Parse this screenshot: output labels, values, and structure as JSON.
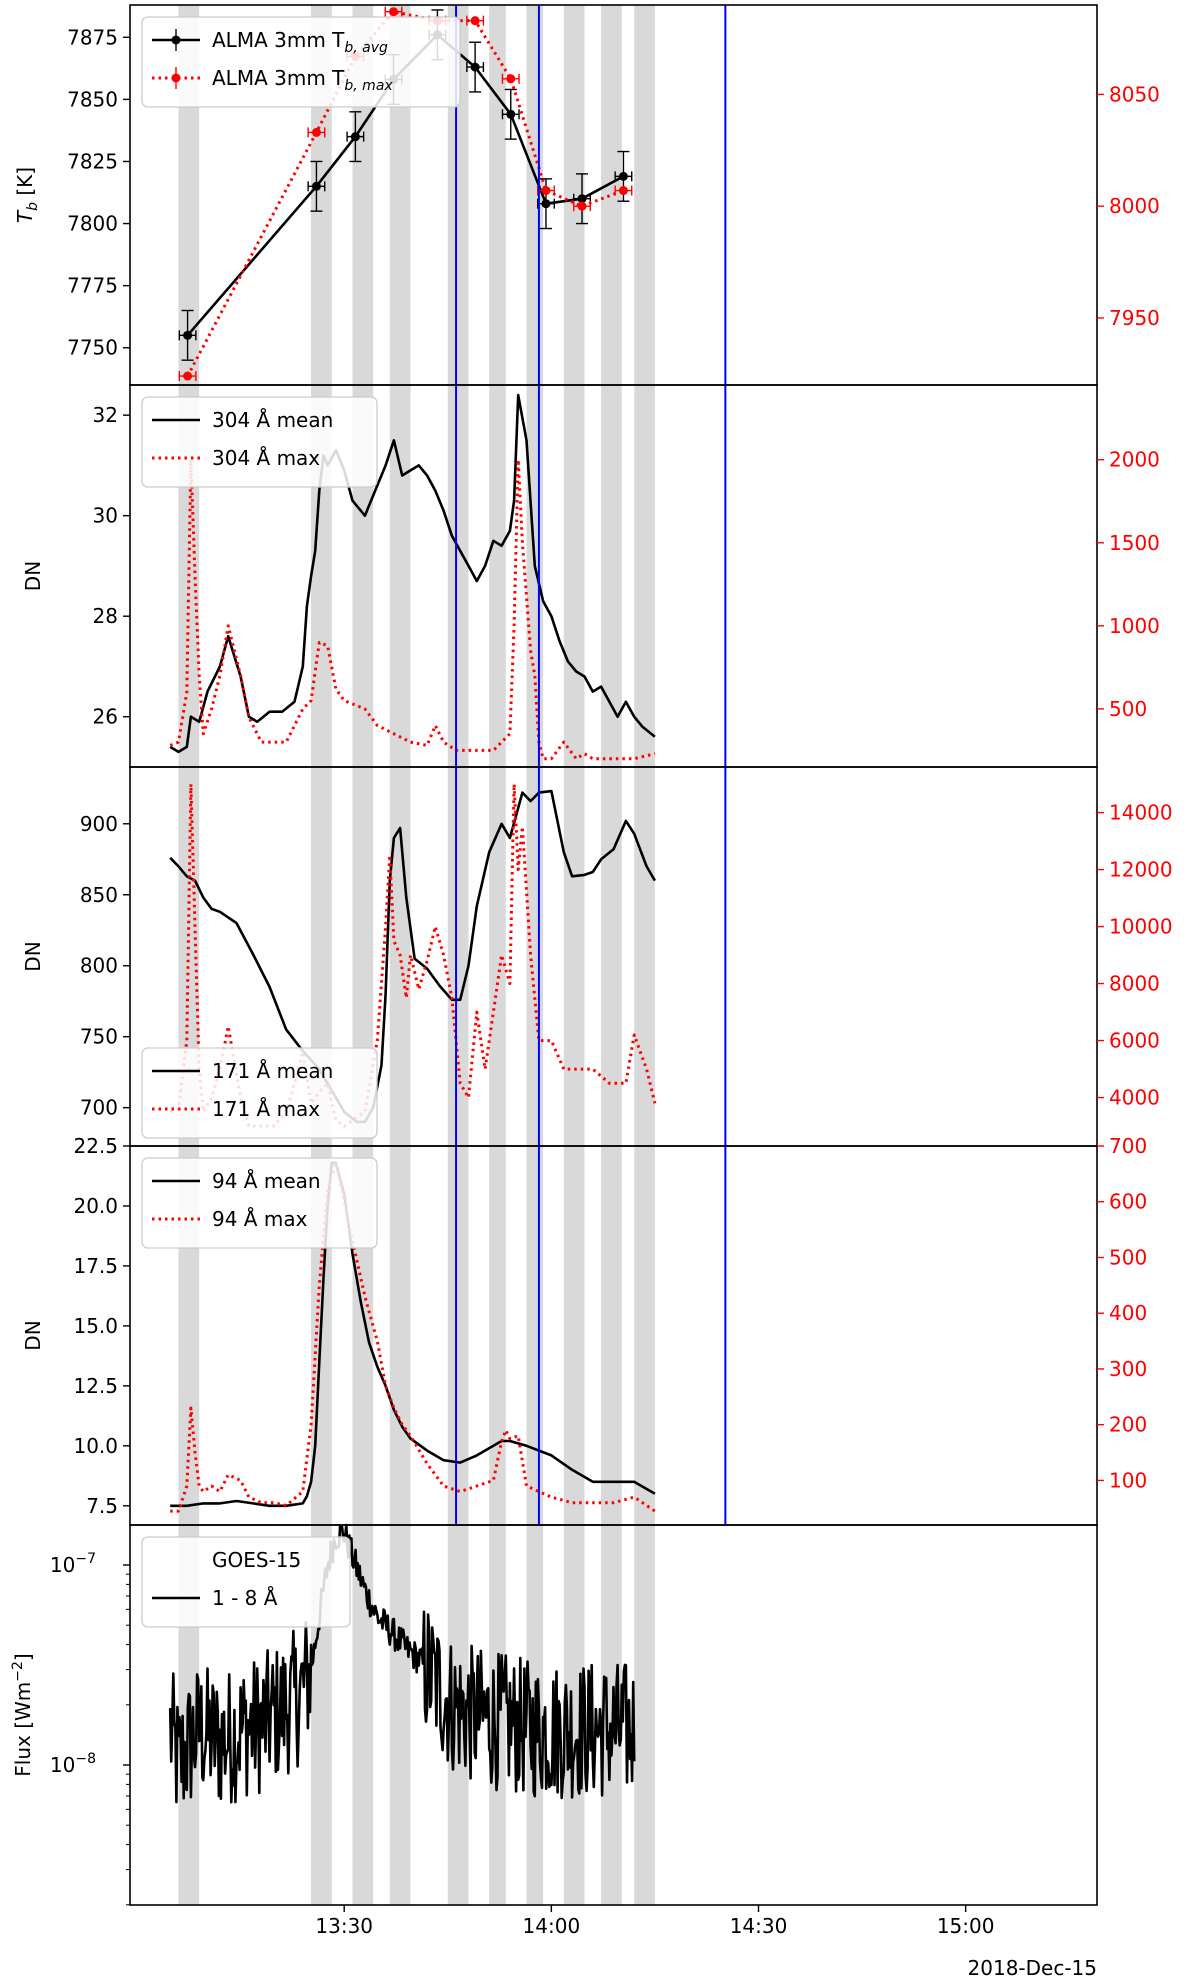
{
  "figure": {
    "date_label": "2018-Dec-15",
    "x_ticks": [
      {
        "t": 13.5,
        "label": "13:30"
      },
      {
        "t": 14.0,
        "label": "14:00"
      },
      {
        "t": 14.5,
        "label": "14:30"
      },
      {
        "t": 15.0,
        "label": "15:00"
      }
    ],
    "xlim": [
      12.983,
      15.317
    ],
    "gray_bands": [
      [
        13.1,
        13.15
      ],
      [
        13.42,
        13.47
      ],
      [
        13.52,
        13.57
      ],
      [
        13.61,
        13.66
      ],
      [
        13.75,
        13.8
      ],
      [
        13.85,
        13.89
      ],
      [
        13.94,
        13.98
      ],
      [
        14.03,
        14.08
      ],
      [
        14.12,
        14.17
      ],
      [
        14.2,
        14.25
      ]
    ],
    "blue_lines": [
      13.77,
      13.97,
      14.42
    ],
    "colors": {
      "black": "#000000",
      "red": "#ff0000",
      "blue": "#0000ff",
      "gray": "#d9d9d9"
    }
  },
  "chart_data": [
    {
      "type": "line",
      "panel": "ALMA",
      "ylabel": "T_b [K]",
      "ylim_left": [
        7735,
        7888
      ],
      "ylim_right": [
        7920,
        8090
      ],
      "yticks_left": [
        7750,
        7775,
        7800,
        7825,
        7850,
        7875
      ],
      "yticks_right": [
        7950,
        8000,
        8050
      ],
      "legend": [
        {
          "main": "ALMA 3mm T",
          "sub": "b, avg"
        },
        {
          "main": "ALMA 3mm T",
          "sub": "b, max"
        }
      ],
      "series": [
        {
          "name": "ALMA 3mm Tb,avg",
          "axis": "left",
          "style": "solid",
          "color": "black",
          "x": [
            13.122,
            13.433,
            13.527,
            13.619,
            13.725,
            13.816,
            13.902,
            13.987,
            14.074,
            14.174
          ],
          "y": [
            7755,
            7815,
            7835,
            7858,
            7876,
            7863,
            7844,
            7808,
            7810,
            7819
          ],
          "yerr": 10,
          "xerr": 0.02
        },
        {
          "name": "ALMA 3mm Tb,max",
          "axis": "right",
          "style": "dotted",
          "color": "red",
          "x": [
            13.122,
            13.433,
            13.527,
            13.619,
            13.725,
            13.816,
            13.902,
            13.987,
            14.074,
            14.174
          ],
          "y": [
            7924,
            8033,
            8067,
            8087,
            8083,
            8083,
            8057,
            8007,
            8000,
            8007
          ],
          "xerr": 0.02
        }
      ]
    },
    {
      "type": "line",
      "panel": "304",
      "ylabel": "DN",
      "ylim_left": [
        25.0,
        32.6
      ],
      "ylim_right": [
        150,
        2450
      ],
      "yticks_left": [
        26,
        28,
        30,
        32
      ],
      "yticks_right": [
        500,
        1000,
        1500,
        2000
      ],
      "legend": [
        {
          "main": "304 Å mean"
        },
        {
          "main": "304 Å max"
        }
      ],
      "series": [
        {
          "name": "304 Å mean",
          "axis": "left",
          "style": "solid",
          "color": "black",
          "x": [
            13.08,
            13.1,
            13.12,
            13.13,
            13.15,
            13.17,
            13.2,
            13.22,
            13.25,
            13.27,
            13.29,
            13.32,
            13.35,
            13.38,
            13.4,
            13.41,
            13.42,
            13.43,
            13.44,
            13.45,
            13.46,
            13.48,
            13.5,
            13.52,
            13.55,
            13.58,
            13.6,
            13.62,
            13.64,
            13.66,
            13.68,
            13.7,
            13.72,
            13.74,
            13.76,
            13.78,
            13.8,
            13.82,
            13.84,
            13.86,
            13.88,
            13.9,
            13.91,
            13.92,
            13.94,
            13.96,
            13.98,
            14.0,
            14.02,
            14.04,
            14.06,
            14.08,
            14.1,
            14.12,
            14.14,
            14.16,
            14.18,
            14.2,
            14.22,
            14.25
          ],
          "y": [
            25.4,
            25.3,
            25.4,
            26.0,
            25.9,
            26.5,
            27.0,
            27.6,
            26.8,
            26.0,
            25.9,
            26.1,
            26.1,
            26.3,
            27.0,
            28.2,
            28.8,
            29.3,
            30.5,
            31.2,
            31.0,
            31.3,
            30.9,
            30.3,
            30.0,
            30.6,
            31.0,
            31.5,
            30.8,
            30.9,
            31.0,
            30.8,
            30.5,
            30.1,
            29.6,
            29.3,
            29.0,
            28.7,
            29.0,
            29.5,
            29.4,
            29.7,
            30.3,
            32.4,
            31.5,
            29.0,
            28.3,
            28.0,
            27.5,
            27.1,
            26.9,
            26.8,
            26.5,
            26.6,
            26.3,
            26.0,
            26.3,
            26.0,
            25.8,
            25.6
          ]
        },
        {
          "name": "304 Å max",
          "axis": "right",
          "style": "dotted",
          "color": "red",
          "x": [
            13.08,
            13.1,
            13.12,
            13.13,
            13.14,
            13.15,
            13.16,
            13.18,
            13.2,
            13.22,
            13.25,
            13.27,
            13.3,
            13.33,
            13.36,
            13.38,
            13.4,
            13.42,
            13.44,
            13.46,
            13.48,
            13.5,
            13.52,
            13.55,
            13.58,
            13.62,
            13.66,
            13.7,
            13.72,
            13.74,
            13.77,
            13.8,
            13.83,
            13.86,
            13.88,
            13.9,
            13.91,
            13.92,
            13.93,
            13.95,
            13.96,
            13.97,
            13.98,
            14.0,
            14.03,
            14.06,
            14.08,
            14.1,
            14.15,
            14.2,
            14.25
          ],
          "y": [
            280,
            300,
            600,
            2000,
            1300,
            700,
            350,
            500,
            700,
            1000,
            700,
            450,
            300,
            300,
            300,
            400,
            500,
            550,
            900,
            880,
            620,
            550,
            530,
            500,
            400,
            350,
            300,
            280,
            400,
            300,
            250,
            250,
            250,
            250,
            300,
            350,
            1000,
            2000,
            1500,
            850,
            700,
            300,
            200,
            200,
            300,
            200,
            230,
            200,
            200,
            200,
            230
          ]
        }
      ]
    },
    {
      "type": "line",
      "panel": "171",
      "ylabel": "DN",
      "ylim_left": [
        673,
        940
      ],
      "ylim_right": [
        2300,
        15600
      ],
      "yticks_left": [
        700,
        750,
        800,
        850,
        900
      ],
      "yticks_right": [
        4000,
        6000,
        8000,
        10000,
        12000,
        14000
      ],
      "legend": [
        {
          "main": "171 Å mean"
        },
        {
          "main": "171 Å max"
        }
      ],
      "series": [
        {
          "name": "171 Å mean",
          "axis": "left",
          "style": "solid",
          "color": "black",
          "x": [
            13.08,
            13.1,
            13.12,
            13.14,
            13.16,
            13.18,
            13.2,
            13.24,
            13.28,
            13.32,
            13.36,
            13.4,
            13.44,
            13.47,
            13.5,
            13.53,
            13.55,
            13.57,
            13.59,
            13.6,
            13.61,
            13.62,
            13.635,
            13.65,
            13.67,
            13.7,
            13.73,
            13.76,
            13.78,
            13.8,
            13.82,
            13.85,
            13.88,
            13.9,
            13.93,
            13.95,
            13.97,
            14.0,
            14.03,
            14.05,
            14.08,
            14.1,
            14.12,
            14.15,
            14.18,
            14.2,
            14.23,
            14.25
          ],
          "y": [
            876,
            870,
            863,
            860,
            848,
            840,
            838,
            830,
            808,
            785,
            755,
            740,
            727,
            712,
            697,
            690,
            690,
            700,
            730,
            780,
            860,
            890,
            897,
            848,
            805,
            798,
            786,
            776,
            776,
            800,
            842,
            880,
            900,
            890,
            922,
            916,
            922,
            923,
            880,
            863,
            864,
            866,
            875,
            882,
            902,
            893,
            870,
            860
          ]
        },
        {
          "name": "171 Å max",
          "axis": "right",
          "style": "dotted",
          "color": "red",
          "x": [
            13.08,
            13.1,
            13.12,
            13.13,
            13.14,
            13.15,
            13.16,
            13.18,
            13.2,
            13.22,
            13.25,
            13.27,
            13.3,
            13.33,
            13.36,
            13.38,
            13.4,
            13.42,
            13.44,
            13.46,
            13.48,
            13.5,
            13.52,
            13.55,
            13.58,
            13.6,
            13.61,
            13.62,
            13.635,
            13.65,
            13.66,
            13.68,
            13.7,
            13.72,
            13.74,
            13.76,
            13.78,
            13.8,
            13.82,
            13.84,
            13.86,
            13.88,
            13.9,
            13.91,
            13.92,
            13.93,
            13.95,
            13.97,
            14.0,
            14.03,
            14.06,
            14.1,
            14.14,
            14.18,
            14.2,
            14.23,
            14.25
          ],
          "y": [
            3500,
            3600,
            6000,
            15000,
            10000,
            5000,
            3500,
            4000,
            5000,
            6500,
            4000,
            3000,
            3000,
            3000,
            3500,
            4500,
            5600,
            3800,
            4200,
            4500,
            3200,
            3000,
            3200,
            3500,
            6000,
            10000,
            12500,
            9500,
            9000,
            7500,
            9000,
            7800,
            8800,
            10000,
            9000,
            7500,
            4500,
            4000,
            7000,
            5000,
            7000,
            9000,
            8000,
            15000,
            12000,
            13500,
            9000,
            6000,
            6000,
            5000,
            5000,
            5000,
            4500,
            4500,
            6200,
            5000,
            3800
          ]
        }
      ]
    },
    {
      "type": "line",
      "panel": "94",
      "ylabel": "DN",
      "ylim_left": [
        6.7,
        22.5
      ],
      "ylim_right": [
        20,
        700
      ],
      "yticks_left": [
        7.5,
        10.0,
        12.5,
        15.0,
        17.5,
        20.0,
        22.5
      ],
      "yticks_right": [
        100,
        200,
        300,
        400,
        500,
        600,
        700
      ],
      "legend": [
        {
          "main": "94 Å mean"
        },
        {
          "main": "94 Å max"
        }
      ],
      "series": [
        {
          "name": "94 Å mean",
          "axis": "left",
          "style": "solid",
          "color": "black",
          "x": [
            13.08,
            13.12,
            13.16,
            13.2,
            13.24,
            13.28,
            13.32,
            13.36,
            13.4,
            13.41,
            13.42,
            13.43,
            13.44,
            13.45,
            13.46,
            13.47,
            13.48,
            13.5,
            13.52,
            13.54,
            13.56,
            13.58,
            13.6,
            13.62,
            13.64,
            13.66,
            13.7,
            13.74,
            13.78,
            13.82,
            13.86,
            13.88,
            13.9,
            13.94,
            14.0,
            14.05,
            14.1,
            14.15,
            14.2,
            14.25
          ],
          "y": [
            7.5,
            7.5,
            7.6,
            7.6,
            7.7,
            7.6,
            7.5,
            7.5,
            7.6,
            7.9,
            8.5,
            10.0,
            13.5,
            17.0,
            20.0,
            21.8,
            21.8,
            20.5,
            18.0,
            16.0,
            14.3,
            13.3,
            12.5,
            11.5,
            10.8,
            10.3,
            9.8,
            9.4,
            9.3,
            9.6,
            10.0,
            10.2,
            10.2,
            10.0,
            9.6,
            9.0,
            8.5,
            8.5,
            8.5,
            8.0
          ]
        },
        {
          "name": "94 Å max",
          "axis": "right",
          "style": "dotted",
          "color": "red",
          "x": [
            13.08,
            13.1,
            13.12,
            13.13,
            13.14,
            13.15,
            13.16,
            13.18,
            13.2,
            13.22,
            13.25,
            13.27,
            13.3,
            13.33,
            13.36,
            13.4,
            13.42,
            13.44,
            13.46,
            13.48,
            13.5,
            13.52,
            13.55,
            13.58,
            13.6,
            13.62,
            13.64,
            13.66,
            13.7,
            13.74,
            13.78,
            13.82,
            13.86,
            13.88,
            13.89,
            13.9,
            13.92,
            13.94,
            14.0,
            14.05,
            14.1,
            14.15,
            14.2,
            14.25
          ],
          "y": [
            45,
            45,
            90,
            230,
            150,
            90,
            80,
            90,
            80,
            110,
            100,
            70,
            60,
            60,
            55,
            80,
            200,
            450,
            620,
            670,
            600,
            530,
            430,
            350,
            270,
            230,
            200,
            180,
            130,
            90,
            80,
            90,
            100,
            170,
            190,
            175,
            180,
            90,
            70,
            60,
            60,
            60,
            70,
            45
          ]
        }
      ]
    },
    {
      "type": "line",
      "panel": "GOES",
      "ylabel": "Flux [Wm^-2]",
      "yscale": "log",
      "ylim_log10": [
        -8.7,
        -6.8
      ],
      "yticks": [
        {
          "log10": -8,
          "label": "10^-8"
        },
        {
          "log10": -7,
          "label": "10^-7"
        }
      ],
      "legend": [
        {
          "main": "GOES-15"
        },
        {
          "main": "1 - 8 Å"
        }
      ],
      "series": [
        {
          "name": "GOES-15 1 - 8 Å",
          "style": "solid",
          "color": "black",
          "x": [
            13.08,
            13.1,
            13.12,
            13.15,
            13.2,
            13.25,
            13.3,
            13.35,
            13.39,
            13.42,
            13.44,
            13.46,
            13.48,
            13.5,
            13.52,
            13.55,
            13.58,
            13.62,
            13.65,
            13.68,
            13.72,
            13.76,
            13.8,
            13.85,
            13.9,
            13.95,
            14.0,
            14.05,
            14.1,
            14.15,
            14.2
          ],
          "y": [
            1.5e-08,
            1e-08,
            1.2e-08,
            1.5e-08,
            1.3e-08,
            1.5e-08,
            1.6e-08,
            1.9e-08,
            2.2e-08,
            3e-08,
            5.5e-08,
            1e-07,
            1.4e-07,
            1.45e-07,
            1.1e-07,
            7.5e-08,
            5.5e-08,
            4.5e-08,
            3.8e-08,
            3.4e-08,
            2.6e-08,
            2e-08,
            1.8e-08,
            1.7e-08,
            1.6e-08,
            1.5e-08,
            1.5e-08,
            1.5e-08,
            1.5e-08,
            1.5e-08,
            1.5e-08
          ],
          "noise": "high-frequency noise between ~4e-9 and ~3e-8 in the quiet intervals"
        }
      ]
    }
  ]
}
